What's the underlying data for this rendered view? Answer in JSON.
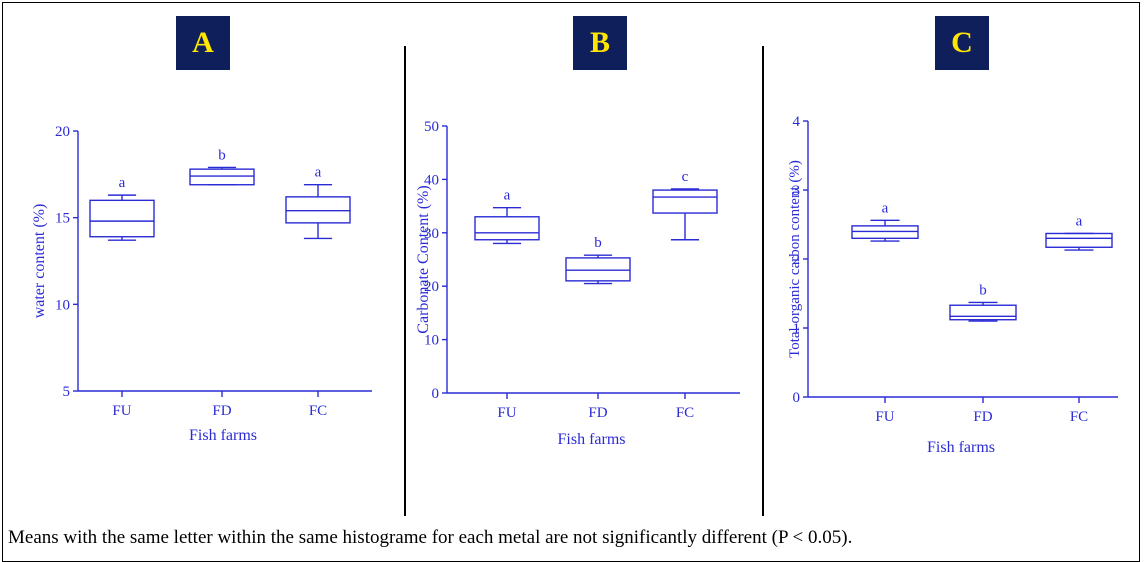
{
  "panels": [
    {
      "label": "A"
    },
    {
      "label": "B"
    },
    {
      "label": "C"
    }
  ],
  "caption": "Means with the same letter within the same histograme for each metal are not significantly different (P < 0.05).",
  "colors": {
    "plot": "#2b2bd6",
    "panel_bg": "#0f1f5c",
    "panel_text": "#ffe600",
    "frame": "#000000"
  },
  "chart_data": [
    {
      "type": "boxplot",
      "panel": "A",
      "categories": [
        "FU",
        "FD",
        "FC"
      ],
      "xlabel": "Fish farms",
      "ylabel": "water content (%)",
      "ylim": [
        5,
        20
      ],
      "yticks": [
        5,
        10,
        15,
        20
      ],
      "boxes": [
        {
          "category": "FU",
          "min": 13.7,
          "q1": 13.9,
          "median": 14.8,
          "q3": 16.0,
          "max": 16.3,
          "letter": "a"
        },
        {
          "category": "FD",
          "min": 16.9,
          "q1": 16.9,
          "median": 17.4,
          "q3": 17.8,
          "max": 17.9,
          "letter": "b"
        },
        {
          "category": "FC",
          "min": 13.8,
          "q1": 14.7,
          "median": 15.4,
          "q3": 16.2,
          "max": 16.9,
          "letter": "a"
        }
      ]
    },
    {
      "type": "boxplot",
      "panel": "B",
      "categories": [
        "FU",
        "FD",
        "FC"
      ],
      "xlabel": "Fish farms",
      "ylabel": "Carbonate Content (%)",
      "ylim": [
        0,
        50
      ],
      "yticks": [
        0,
        10,
        20,
        30,
        40,
        50
      ],
      "boxes": [
        {
          "category": "FU",
          "min": 28.0,
          "q1": 28.7,
          "median": 30.0,
          "q3": 33.0,
          "max": 34.7,
          "letter": "a"
        },
        {
          "category": "FD",
          "min": 20.5,
          "q1": 21.0,
          "median": 23.0,
          "q3": 25.3,
          "max": 25.8,
          "letter": "b"
        },
        {
          "category": "FC",
          "min": 28.7,
          "q1": 33.7,
          "median": 36.7,
          "q3": 38.0,
          "max": 38.2,
          "letter": "c"
        }
      ]
    },
    {
      "type": "boxplot",
      "panel": "C",
      "categories": [
        "FU",
        "FD",
        "FC"
      ],
      "xlabel": "Fish farms",
      "ylabel": "Total organic carbon content (%)",
      "ylim": [
        0,
        4
      ],
      "yticks": [
        0,
        1,
        2,
        3,
        4
      ],
      "boxes": [
        {
          "category": "FU",
          "min": 2.26,
          "q1": 2.3,
          "median": 2.4,
          "q3": 2.48,
          "max": 2.56,
          "letter": "a"
        },
        {
          "category": "FD",
          "min": 1.1,
          "q1": 1.12,
          "median": 1.17,
          "q3": 1.33,
          "max": 1.37,
          "letter": "b"
        },
        {
          "category": "FC",
          "min": 2.13,
          "q1": 2.17,
          "median": 2.3,
          "q3": 2.37,
          "max": 2.37,
          "letter": "a"
        }
      ]
    }
  ]
}
